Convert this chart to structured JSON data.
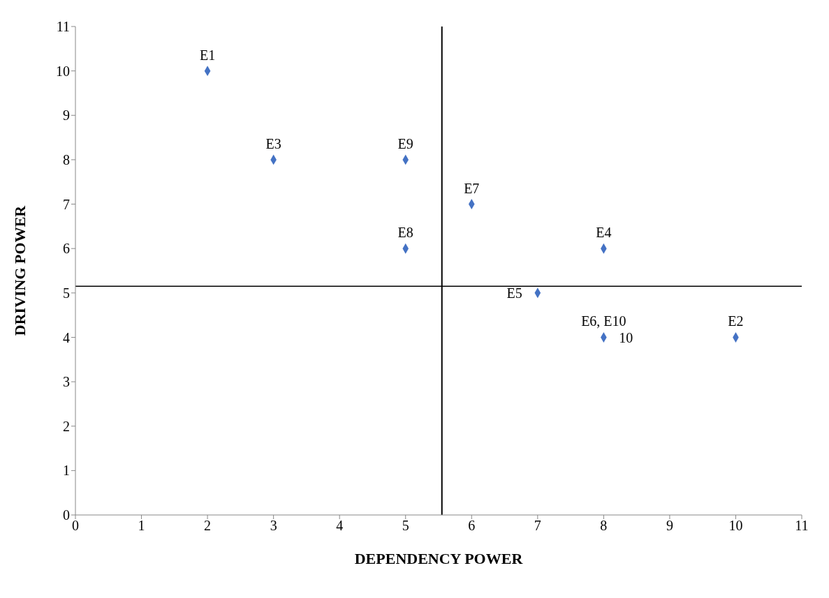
{
  "chart_data": {
    "type": "scatter",
    "xlabel": "DEPENDENCY POWER",
    "ylabel": "DRIVING POWER",
    "x": [
      2,
      3,
      5,
      6,
      5,
      8,
      7,
      8,
      10
    ],
    "values": [
      10,
      8,
      8,
      7,
      6,
      6,
      5,
      4,
      4
    ],
    "color": "#4472c4",
    "marker": "diamond",
    "xlim": [
      0,
      11
    ],
    "xticks": [
      0,
      1,
      2,
      3,
      4,
      5,
      6,
      7,
      8,
      9,
      10,
      11
    ],
    "ylim": [
      0,
      11
    ],
    "yticks": [
      0,
      1,
      2,
      3,
      4,
      5,
      6,
      7,
      8,
      9,
      10,
      11
    ],
    "grid": false,
    "legend": false,
    "ref_lines": [
      {
        "axis": "x",
        "value": 5.55,
        "color": "#000000"
      },
      {
        "axis": "y",
        "value": 5.15,
        "color": "#000000"
      }
    ],
    "annotations": [
      {
        "text": "E1",
        "x": 2,
        "y": 10
      },
      {
        "text": "E3",
        "x": 3,
        "y": 8
      },
      {
        "text": "E9",
        "x": 5,
        "y": 8
      },
      {
        "text": "E7",
        "x": 6,
        "y": 7
      },
      {
        "text": "E8",
        "x": 5,
        "y": 6
      },
      {
        "text": "E4",
        "x": 8,
        "y": 6
      },
      {
        "text": "E5",
        "x": 7,
        "y": 5
      },
      {
        "text": "E6, E10",
        "x": 8,
        "y": 4
      },
      {
        "text": "E2",
        "x": 10,
        "y": 4
      },
      {
        "text": "10",
        "x": 8,
        "y": 4
      }
    ]
  }
}
